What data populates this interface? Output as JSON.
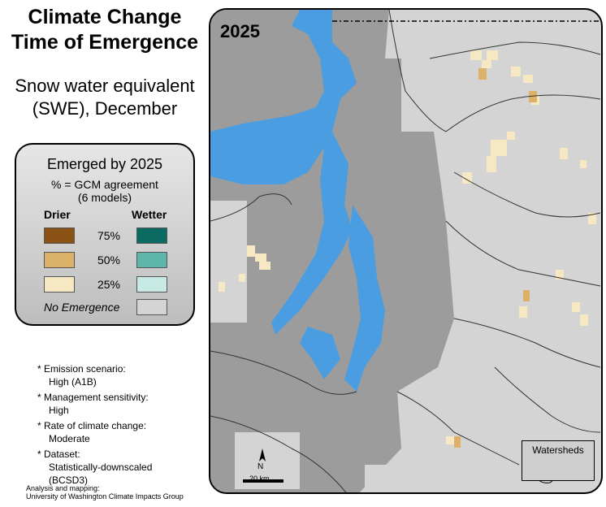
{
  "title": {
    "line1": "Climate Change",
    "line2": "Time of Emergence"
  },
  "subtitle": {
    "line1": "Snow water equivalent",
    "line2": "(SWE), December"
  },
  "legend": {
    "title": "Emerged by 2025",
    "subtitle_line1": "% = GCM agreement",
    "subtitle_line2": "(6 models)",
    "drier_label": "Drier",
    "wetter_label": "Wetter",
    "rows": [
      {
        "pct": "75%",
        "drier_color": "#8a5214",
        "wetter_color": "#0b6b63"
      },
      {
        "pct": "50%",
        "drier_color": "#dbb268",
        "wetter_color": "#5fb6ad"
      },
      {
        "pct": "25%",
        "drier_color": "#f6e8c3",
        "wetter_color": "#c7eae5"
      }
    ],
    "no_emergence_label": "No Emergence",
    "no_emergence_color": "#d4d4d4"
  },
  "notes": [
    {
      "label": "* Emission scenario:",
      "value": "High (A1B)"
    },
    {
      "label": "* Management sensitivity:",
      "value": "High"
    },
    {
      "label": "* Rate of climate change:",
      "value": "Moderate"
    },
    {
      "label": "* Dataset:",
      "value": "Statistically-downscaled",
      "value2": "(BCSD3)"
    }
  ],
  "credit": {
    "line1": "Analysis and mapping:",
    "line2": "University of Washington Climate Impacts Group"
  },
  "map": {
    "year": "2025",
    "watersheds_label": "Watersheds",
    "scale_label": "20 km",
    "north_label": "N",
    "colors": {
      "water": "#4a9de0",
      "lowland": "#9c9c9c",
      "upland": "#d4d4d4",
      "light_drier": "#f6e8c3",
      "mid_drier": "#dbb268"
    }
  }
}
